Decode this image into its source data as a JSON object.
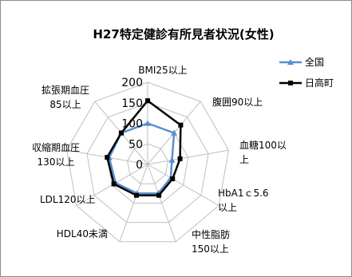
{
  "chart_data": {
    "type": "radar",
    "title": "H27特定健診有所見者状況(女性)",
    "axes": [
      [
        "BMI25以上"
      ],
      [
        "腹囲90以上"
      ],
      [
        "血糖100以",
        "上"
      ],
      [
        "HbA1ｃ5.6",
        "以上"
      ],
      [
        "中性脂肪",
        "150以上"
      ],
      [
        "HDL40未満"
      ],
      [
        "LDL120以上"
      ],
      [
        "収縮期血圧",
        "130以上"
      ],
      [
        "拡張期血圧",
        "85以上"
      ]
    ],
    "ticks": [
      0,
      50,
      100,
      150,
      200
    ],
    "rmax": 200,
    "grid": true,
    "legend_position": "top-right",
    "series": [
      {
        "name": "全国",
        "color": "#5b8fd0",
        "marker": "triangle",
        "values": [
          100,
          100,
          60,
          65,
          75,
          75,
          90,
          95,
          100
        ]
      },
      {
        "name": "日高町",
        "color": "#000000",
        "marker": "square",
        "values": [
          155,
          125,
          80,
          70,
          80,
          80,
          95,
          100,
          100
        ]
      }
    ]
  }
}
